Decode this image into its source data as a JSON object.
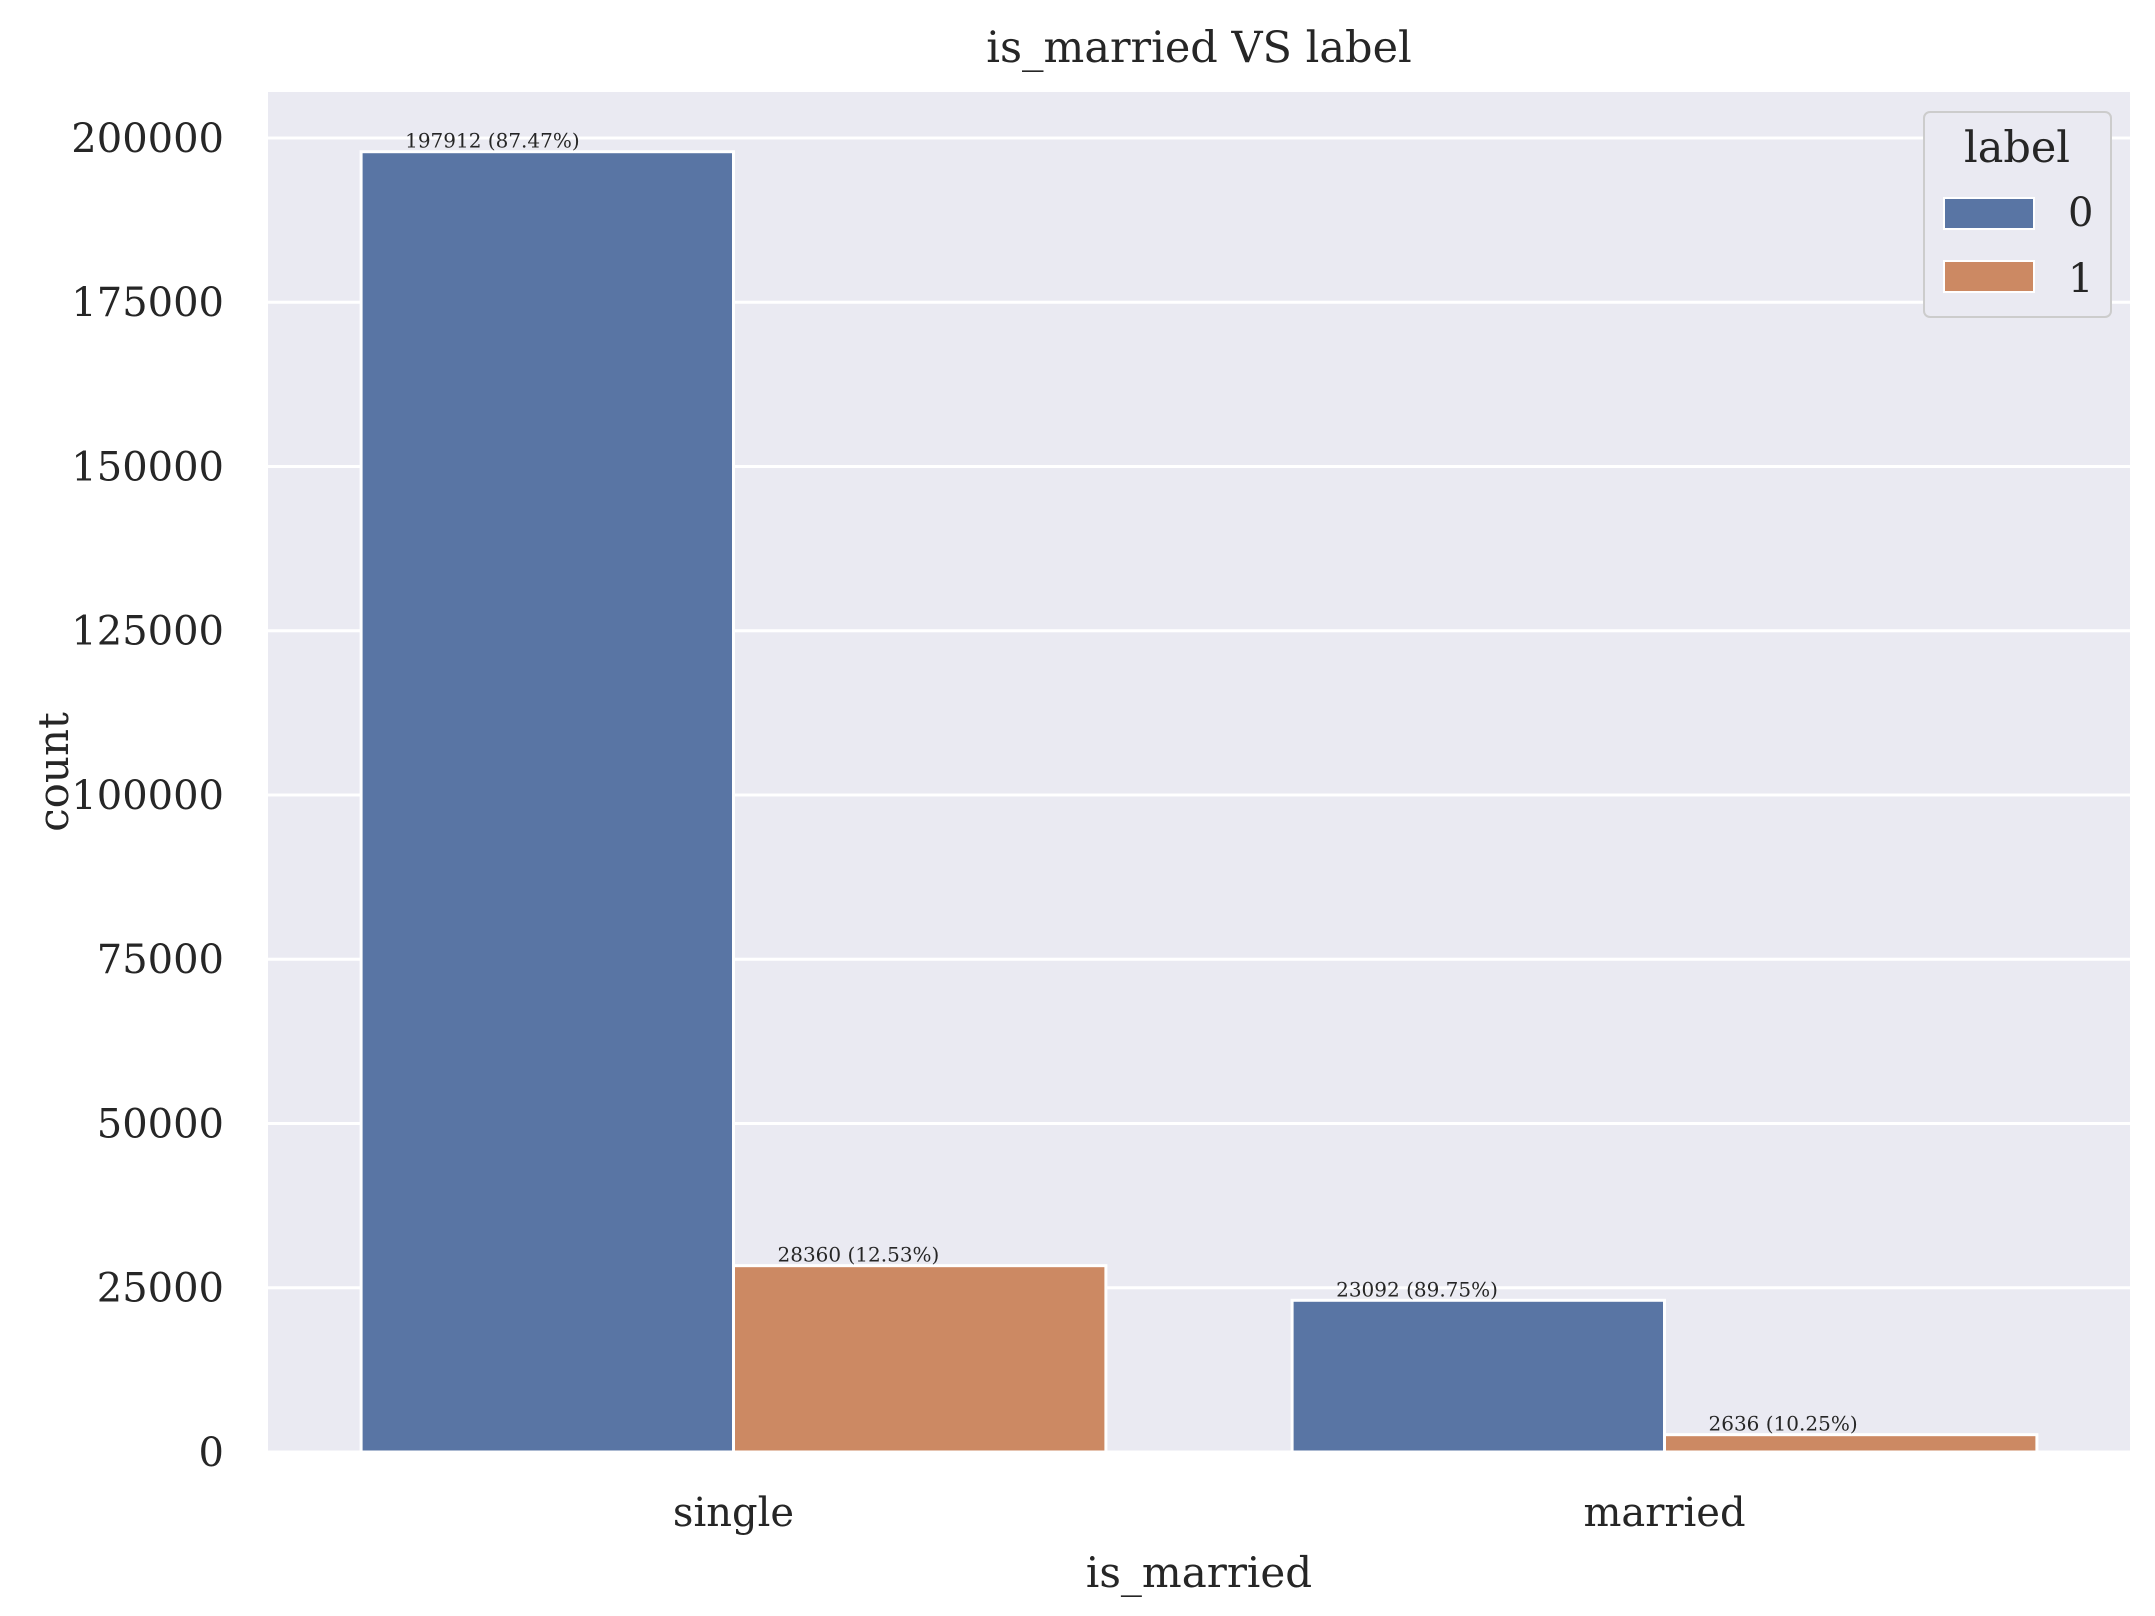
{
  "chart_data": {
    "type": "bar",
    "title": "is_married VS label",
    "xlabel": "is_married",
    "ylabel": "count",
    "categories": [
      "single",
      "married"
    ],
    "series": [
      {
        "name": "0",
        "color": "#5975a4",
        "values": [
          197912,
          23092
        ],
        "labels": [
          "197912 (87.47%)",
          "23092 (89.75%)"
        ]
      },
      {
        "name": "1",
        "color": "#cc8963",
        "values": [
          28360,
          2636
        ],
        "labels": [
          "28360 (12.53%)",
          "2636 (10.25%)"
        ]
      }
    ],
    "ylim": [
      0,
      207000
    ],
    "yticks": [
      0,
      25000,
      50000,
      75000,
      100000,
      125000,
      150000,
      175000,
      200000
    ],
    "ytick_labels": [
      "0",
      "25000",
      "50000",
      "75000",
      "100000",
      "125000",
      "150000",
      "175000",
      "200000"
    ],
    "legend": {
      "title": "label",
      "position": "top-right"
    },
    "grid": true,
    "background": "#eaeaf2"
  }
}
